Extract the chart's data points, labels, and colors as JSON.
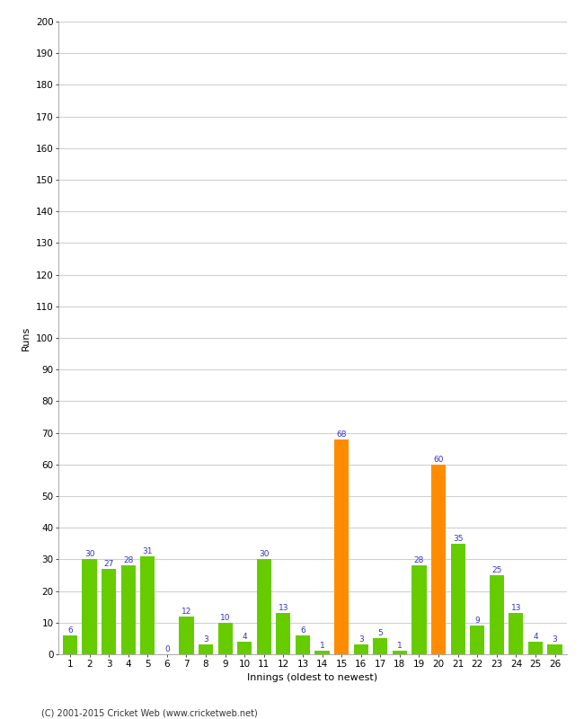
{
  "xlabel": "Innings (oldest to newest)",
  "ylabel": "Runs",
  "categories": [
    1,
    2,
    3,
    4,
    5,
    6,
    7,
    8,
    9,
    10,
    11,
    12,
    13,
    14,
    15,
    16,
    17,
    18,
    19,
    20,
    21,
    22,
    23,
    24,
    25,
    26
  ],
  "values": [
    6,
    30,
    27,
    28,
    31,
    0,
    12,
    3,
    10,
    4,
    30,
    13,
    6,
    1,
    68,
    3,
    5,
    1,
    28,
    60,
    35,
    9,
    25,
    13,
    4,
    3
  ],
  "colors": [
    "#66cc00",
    "#66cc00",
    "#66cc00",
    "#66cc00",
    "#66cc00",
    "#66cc00",
    "#66cc00",
    "#66cc00",
    "#66cc00",
    "#66cc00",
    "#66cc00",
    "#66cc00",
    "#66cc00",
    "#66cc00",
    "#ff8c00",
    "#66cc00",
    "#66cc00",
    "#66cc00",
    "#66cc00",
    "#ff8c00",
    "#66cc00",
    "#66cc00",
    "#66cc00",
    "#66cc00",
    "#66cc00",
    "#66cc00"
  ],
  "ylim": [
    0,
    200
  ],
  "yticks": [
    0,
    10,
    20,
    30,
    40,
    50,
    60,
    70,
    80,
    90,
    100,
    110,
    120,
    130,
    140,
    150,
    160,
    170,
    180,
    190,
    200
  ],
  "label_color": "#3333cc",
  "label_fontsize": 6.5,
  "axis_fontsize": 8,
  "tick_fontsize": 7.5,
  "background_color": "#ffffff",
  "grid_color": "#d0d0d0",
  "footer_text": "(C) 2001-2015 Cricket Web (www.cricketweb.net)",
  "bar_width": 0.75
}
